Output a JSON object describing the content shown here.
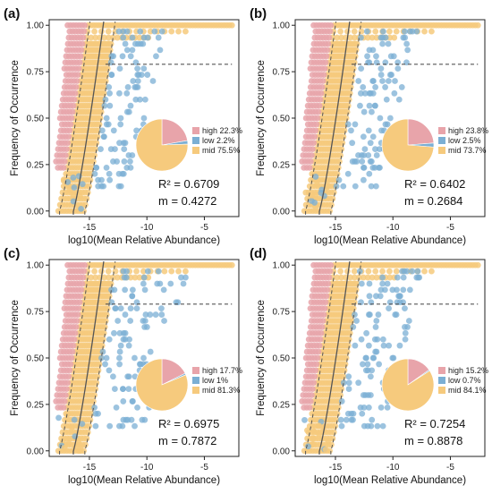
{
  "chart_data": [
    {
      "type": "scatter",
      "panel_label": "(a)",
      "xlabel": "log10(Mean Relative Abundance)",
      "ylabel": "Frequency of Occurrence",
      "xlim": [
        -18.5,
        -2
      ],
      "ylim": [
        -0.03,
        1.03
      ],
      "x_ticks": [
        -15,
        -10,
        -5
      ],
      "y_ticks": [
        0.0,
        0.25,
        0.5,
        0.75,
        1.0
      ],
      "y_tick_labels": [
        "0.00",
        "0.25",
        "0.50",
        "0.75",
        "1.00"
      ],
      "grid": false,
      "plateau_y": 0.79,
      "r2_text": "R² = 0.6709",
      "m_text": "m = 0.4272",
      "pie": [
        {
          "name": "high",
          "label": "high 22.3%",
          "value": 22.3,
          "color": "#E8A4AA"
        },
        {
          "name": "low",
          "label": "low 2.2%",
          "value": 2.2,
          "color": "#7BAFD4"
        },
        {
          "name": "mid",
          "label": "mid 75.5%",
          "value": 75.5,
          "color": "#F6CA7D"
        }
      ],
      "blue_extent": 0.9
    },
    {
      "type": "scatter",
      "panel_label": "(b)",
      "xlabel": "log10(Mean Relative Abundance)",
      "ylabel": "Frequency of Occurrence",
      "xlim": [
        -18.5,
        -2
      ],
      "ylim": [
        -0.03,
        1.03
      ],
      "x_ticks": [
        -15,
        -10,
        -5
      ],
      "y_ticks": [
        0.0,
        0.25,
        0.5,
        0.75,
        1.0
      ],
      "y_tick_labels": [
        "0.00",
        "0.25",
        "0.50",
        "0.75",
        "1.00"
      ],
      "grid": false,
      "plateau_y": 0.79,
      "r2_text": "R² = 0.6402",
      "m_text": "m = 0.2684",
      "pie": [
        {
          "name": "high",
          "label": "high 23.8%",
          "value": 23.8,
          "color": "#E8A4AA"
        },
        {
          "name": "low",
          "label": "low 2.5%",
          "value": 2.5,
          "color": "#7BAFD4"
        },
        {
          "name": "mid",
          "label": "mid 73.7%",
          "value": 73.7,
          "color": "#F6CA7D"
        }
      ],
      "blue_extent": 1.0
    },
    {
      "type": "scatter",
      "panel_label": "(c)",
      "xlabel": "log10(Mean Relative Abundance)",
      "ylabel": "Frequency of Occurrence",
      "xlim": [
        -18.5,
        -2
      ],
      "ylim": [
        -0.03,
        1.03
      ],
      "x_ticks": [
        -15,
        -10,
        -5
      ],
      "y_ticks": [
        0.0,
        0.25,
        0.5,
        0.75,
        1.0
      ],
      "y_tick_labels": [
        "0.00",
        "0.25",
        "0.50",
        "0.75",
        "1.00"
      ],
      "grid": false,
      "plateau_y": 0.79,
      "r2_text": "R² = 0.6975",
      "m_text": "m = 0.7872",
      "pie": [
        {
          "name": "high",
          "label": "high 17.7%",
          "value": 17.7,
          "color": "#E8A4AA"
        },
        {
          "name": "low",
          "label": "low 1%",
          "value": 1.0,
          "color": "#7BAFD4"
        },
        {
          "name": "mid",
          "label": "mid 81.3%",
          "value": 81.3,
          "color": "#F6CA7D"
        }
      ],
      "blue_extent": 1.3
    },
    {
      "type": "scatter",
      "panel_label": "(d)",
      "xlabel": "log10(Mean Relative Abundance)",
      "ylabel": "Frequency of Occurrence",
      "xlim": [
        -18.5,
        -2
      ],
      "ylim": [
        -0.03,
        1.03
      ],
      "x_ticks": [
        -15,
        -10,
        -5
      ],
      "y_ticks": [
        0.0,
        0.25,
        0.5,
        0.75,
        1.0
      ],
      "y_tick_labels": [
        "0.00",
        "0.25",
        "0.50",
        "0.75",
        "1.00"
      ],
      "grid": false,
      "plateau_y": 0.79,
      "r2_text": "R² = 0.7254",
      "m_text": "m = 0.8878",
      "pie": [
        {
          "name": "high",
          "label": "high 15.2%",
          "value": 15.2,
          "color": "#E8A4AA"
        },
        {
          "name": "low",
          "label": "low 0.7%",
          "value": 0.7,
          "color": "#7BAFD4"
        },
        {
          "name": "mid",
          "label": "mid 84.1%",
          "value": 84.1,
          "color": "#F6CA7D"
        }
      ],
      "blue_extent": 1.1
    }
  ],
  "colors": {
    "high": "#E8A4AA",
    "low": "#7BAFD4",
    "mid": "#F6CA7D",
    "fit_line": "#555555",
    "plateau_line": "#555555"
  }
}
